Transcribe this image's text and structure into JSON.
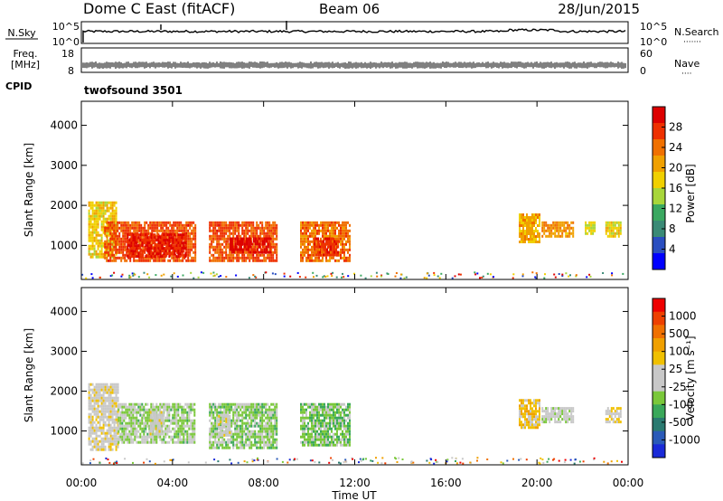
{
  "header": {
    "title": "Dome C East (fitACF)",
    "beam": "Beam 06",
    "date": "28/Jun/2015"
  },
  "nsky_panel": {
    "label": "N.Sky",
    "ticks_left": [
      "10^5",
      "10^0"
    ],
    "ticks_right": [
      "10^5",
      "10^0"
    ],
    "right_label": "N.Search",
    "right_dots": "·······"
  },
  "freq_panel": {
    "label_line1": "Freq.",
    "label_line2": "[MHz]",
    "ticks_left": [
      "18",
      "8"
    ],
    "ticks_right": [
      "60",
      "0"
    ],
    "right_label": "Nave",
    "right_dots": "····"
  },
  "cpid": {
    "label": "CPID",
    "value": "twofsound 3501"
  },
  "colors": {
    "power_scale": [
      "#0000ff",
      "#2a4ec0",
      "#3a8a76",
      "#3aa860",
      "#a8d63a",
      "#f0d000",
      "#f0a000",
      "#f07000",
      "#ee3000",
      "#dd0000"
    ],
    "velocity_scale": [
      "#1a2ad8",
      "#2a5ab8",
      "#2a7a70",
      "#3aa85a",
      "#7ac83a",
      "#c8c8c8",
      "#c8c8c8",
      "#f0c000",
      "#f0a000",
      "#f07000",
      "#ee4000",
      "#ee0000"
    ]
  },
  "chart_data": [
    {
      "type": "heatmap",
      "name": "power",
      "ylabel": "Slant Range [km]",
      "y_ticks": [
        1000,
        2000,
        3000,
        4000
      ],
      "ylim": [
        150,
        4600
      ],
      "x_ticks": [
        "00:00",
        "04:00",
        "08:00",
        "12:00",
        "16:00",
        "20:00",
        "00:00"
      ],
      "xlim_hours": [
        0,
        24
      ],
      "colorbar": {
        "label": "Power [dB]",
        "ticks": [
          "28",
          "24",
          "20",
          "16",
          "12",
          "8",
          "4"
        ],
        "range": [
          0,
          32
        ]
      },
      "echo_regions": [
        {
          "t_start": 0.3,
          "t_end": 1.5,
          "r_low": 700,
          "r_high": 2100,
          "value": 18
        },
        {
          "t_start": 1.0,
          "t_end": 5.0,
          "r_low": 650,
          "r_high": 1600,
          "value": 26
        },
        {
          "t_start": 2.0,
          "t_end": 4.6,
          "r_low": 750,
          "r_high": 1300,
          "value": 29
        },
        {
          "t_start": 5.6,
          "t_end": 8.6,
          "r_low": 600,
          "r_high": 1600,
          "value": 26
        },
        {
          "t_start": 6.5,
          "t_end": 8.3,
          "r_low": 800,
          "r_high": 1200,
          "value": 30
        },
        {
          "t_start": 9.6,
          "t_end": 11.8,
          "r_low": 650,
          "r_high": 1600,
          "value": 24
        },
        {
          "t_start": 10.2,
          "t_end": 11.3,
          "r_low": 750,
          "r_high": 1200,
          "value": 28
        },
        {
          "t_start": 19.2,
          "t_end": 20.1,
          "r_low": 1100,
          "r_high": 1800,
          "value": 20
        },
        {
          "t_start": 20.2,
          "t_end": 21.6,
          "r_low": 1200,
          "r_high": 1600,
          "value": 22
        },
        {
          "t_start": 22.1,
          "t_end": 22.5,
          "r_low": 1300,
          "r_high": 1600,
          "value": 16
        },
        {
          "t_start": 23.0,
          "t_end": 23.7,
          "r_low": 1250,
          "r_high": 1600,
          "value": 18
        }
      ]
    },
    {
      "type": "heatmap",
      "name": "velocity",
      "ylabel": "Slant Range [km]",
      "y_ticks": [
        1000,
        2000,
        3000,
        4000
      ],
      "ylim": [
        150,
        4600
      ],
      "x_ticks": [
        "00:00",
        "04:00",
        "08:00",
        "12:00",
        "16:00",
        "20:00",
        "00:00"
      ],
      "xlabel": "Time UT",
      "xlim_hours": [
        0,
        24
      ],
      "colorbar": {
        "label": "Velocity [m s⁻¹]",
        "ticks": [
          "1000",
          "500",
          "100",
          "25",
          "-25",
          "-100",
          "-500",
          "-1000"
        ],
        "range": [
          -1200,
          1200
        ]
      },
      "echo_regions": [
        {
          "t_start": 0.3,
          "t_end": 1.6,
          "r_low": 550,
          "r_high": 2200,
          "value": 80
        },
        {
          "t_start": 1.6,
          "t_end": 5.0,
          "r_low": 700,
          "r_high": 1700,
          "value": -200
        },
        {
          "t_start": 3.0,
          "t_end": 3.6,
          "r_low": 900,
          "r_high": 1500,
          "value": 60
        },
        {
          "t_start": 5.6,
          "t_end": 8.6,
          "r_low": 600,
          "r_high": 1700,
          "value": -250
        },
        {
          "t_start": 6.0,
          "t_end": 6.5,
          "r_low": 900,
          "r_high": 1400,
          "value": 60
        },
        {
          "t_start": 9.6,
          "t_end": 11.8,
          "r_low": 650,
          "r_high": 1700,
          "value": -300
        },
        {
          "t_start": 19.2,
          "t_end": 20.1,
          "r_low": 1100,
          "r_high": 1800,
          "value": 300
        },
        {
          "t_start": 20.2,
          "t_end": 21.6,
          "r_low": 1200,
          "r_high": 1600,
          "value": -60
        },
        {
          "t_start": 23.0,
          "t_end": 23.7,
          "r_low": 1250,
          "r_high": 1600,
          "value": 150
        }
      ]
    }
  ]
}
